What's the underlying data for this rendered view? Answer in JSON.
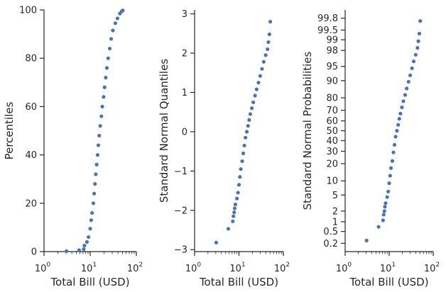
{
  "chart_data": [
    {
      "type": "scatter",
      "xscale": "log",
      "xlabel": "Total Bill (USD)",
      "ylabel": "Percentiles",
      "xlim": [
        1,
        100
      ],
      "ylim": [
        0,
        100
      ],
      "xticks": [
        1,
        10,
        100
      ],
      "xtick_labels": [
        {
          "base": "10",
          "exp": "0"
        },
        {
          "base": "10",
          "exp": "1"
        },
        {
          "base": "10",
          "exp": "2"
        }
      ],
      "yticks": [
        0,
        20,
        40,
        60,
        80,
        100
      ],
      "ytick_labels": [
        "0",
        "20",
        "40",
        "60",
        "80",
        "100"
      ],
      "grid": false,
      "marker_color": "#4c72b0",
      "points": [
        {
          "x": 3.07,
          "y": 0.2
        },
        {
          "x": 5.75,
          "y": 0.6
        },
        {
          "x": 7.25,
          "y": 1.0
        },
        {
          "x": 7.5,
          "y": 2.5
        },
        {
          "x": 8.5,
          "y": 4.0
        },
        {
          "x": 9.2,
          "y": 6.0
        },
        {
          "x": 10.0,
          "y": 9.5
        },
        {
          "x": 10.5,
          "y": 13.0
        },
        {
          "x": 11.0,
          "y": 16.0
        },
        {
          "x": 11.7,
          "y": 20.0
        },
        {
          "x": 12.2,
          "y": 24.0
        },
        {
          "x": 12.7,
          "y": 28.0
        },
        {
          "x": 13.2,
          "y": 32.0
        },
        {
          "x": 13.8,
          "y": 36.0
        },
        {
          "x": 14.5,
          "y": 40.0
        },
        {
          "x": 15.0,
          "y": 44.0
        },
        {
          "x": 15.7,
          "y": 48.0
        },
        {
          "x": 16.5,
          "y": 52.0
        },
        {
          "x": 17.5,
          "y": 56.0
        },
        {
          "x": 18.3,
          "y": 60.0
        },
        {
          "x": 19.5,
          "y": 64.0
        },
        {
          "x": 20.5,
          "y": 68.0
        },
        {
          "x": 21.7,
          "y": 72.0
        },
        {
          "x": 23.0,
          "y": 76.0
        },
        {
          "x": 24.5,
          "y": 80.0
        },
        {
          "x": 26.5,
          "y": 84.0
        },
        {
          "x": 28.5,
          "y": 88.0
        },
        {
          "x": 31.0,
          "y": 91.5
        },
        {
          "x": 35.0,
          "y": 94.5
        },
        {
          "x": 39.0,
          "y": 96.5
        },
        {
          "x": 44.0,
          "y": 98.5
        },
        {
          "x": 48.0,
          "y": 99.4
        },
        {
          "x": 50.8,
          "y": 99.8
        }
      ]
    },
    {
      "type": "scatter",
      "xscale": "log",
      "xlabel": "Total Bill (USD)",
      "ylabel": "Standard Normal Quantiles",
      "xlim": [
        1,
        100
      ],
      "ylim": [
        -3.05,
        3.1
      ],
      "xticks": [
        1,
        10,
        100
      ],
      "xtick_labels": [
        {
          "base": "10",
          "exp": "0"
        },
        {
          "base": "10",
          "exp": "1"
        },
        {
          "base": "10",
          "exp": "2"
        }
      ],
      "yticks": [
        -3,
        -2,
        -1,
        0,
        1,
        2,
        3
      ],
      "ytick_labels": [
        "−3",
        "−2",
        "−1",
        "0",
        "1",
        "2",
        "3"
      ],
      "grid": false,
      "marker_color": "#4c72b0",
      "points": [
        {
          "x": 3.07,
          "y": -2.82
        },
        {
          "x": 5.75,
          "y": -2.47
        },
        {
          "x": 7.25,
          "y": -2.28
        },
        {
          "x": 7.5,
          "y": -2.15
        },
        {
          "x": 7.8,
          "y": -2.05
        },
        {
          "x": 8.0,
          "y": -1.95
        },
        {
          "x": 8.3,
          "y": -1.85
        },
        {
          "x": 9.0,
          "y": -1.7
        },
        {
          "x": 9.5,
          "y": -1.55
        },
        {
          "x": 10.0,
          "y": -1.35
        },
        {
          "x": 10.5,
          "y": -1.15
        },
        {
          "x": 11.0,
          "y": -0.95
        },
        {
          "x": 11.8,
          "y": -0.75
        },
        {
          "x": 12.5,
          "y": -0.55
        },
        {
          "x": 13.2,
          "y": -0.35
        },
        {
          "x": 14.0,
          "y": -0.15
        },
        {
          "x": 15.0,
          "y": 0.0
        },
        {
          "x": 16.0,
          "y": 0.15
        },
        {
          "x": 17.0,
          "y": 0.3
        },
        {
          "x": 18.0,
          "y": 0.45
        },
        {
          "x": 19.5,
          "y": 0.6
        },
        {
          "x": 21.0,
          "y": 0.75
        },
        {
          "x": 23.0,
          "y": 0.92
        },
        {
          "x": 25.0,
          "y": 1.08
        },
        {
          "x": 27.5,
          "y": 1.25
        },
        {
          "x": 30.0,
          "y": 1.42
        },
        {
          "x": 33.0,
          "y": 1.6
        },
        {
          "x": 36.0,
          "y": 1.78
        },
        {
          "x": 40.0,
          "y": 1.95
        },
        {
          "x": 44.0,
          "y": 2.1
        },
        {
          "x": 46.0,
          "y": 2.28
        },
        {
          "x": 48.5,
          "y": 2.48
        },
        {
          "x": 50.8,
          "y": 2.8
        }
      ]
    },
    {
      "type": "scatter",
      "xscale": "log",
      "yscale": "probability",
      "xlabel": "Total Bill (USD)",
      "ylabel": "Standard Normal Probabilities",
      "xlim": [
        1,
        100
      ],
      "ylim": [
        0.1,
        99.9
      ],
      "xticks": [
        1,
        10,
        100
      ],
      "xtick_labels": [
        {
          "base": "10",
          "exp": "0"
        },
        {
          "base": "10",
          "exp": "1"
        },
        {
          "base": "10",
          "exp": "2"
        }
      ],
      "yticks": [
        0.2,
        0.5,
        1,
        2,
        5,
        10,
        20,
        30,
        40,
        50,
        60,
        70,
        80,
        90,
        95,
        98,
        99,
        99.5,
        99.8
      ],
      "ytick_labels": [
        "0.2",
        "0.5",
        "1",
        "2",
        "5",
        "10",
        "20",
        "30",
        "40",
        "50",
        "60",
        "70",
        "80",
        "90",
        "95",
        "98",
        "99",
        "99.5",
        "99.8"
      ],
      "grid": false,
      "marker_color": "#4c72b0",
      "points": [
        {
          "x": 3.07,
          "y": 0.25
        },
        {
          "x": 5.75,
          "y": 0.7
        },
        {
          "x": 7.25,
          "y": 1.1
        },
        {
          "x": 7.5,
          "y": 1.6
        },
        {
          "x": 7.8,
          "y": 2.0
        },
        {
          "x": 8.0,
          "y": 2.6
        },
        {
          "x": 8.3,
          "y": 3.2
        },
        {
          "x": 9.0,
          "y": 4.5
        },
        {
          "x": 9.5,
          "y": 6.0
        },
        {
          "x": 10.0,
          "y": 9.0
        },
        {
          "x": 10.5,
          "y": 12.5
        },
        {
          "x": 11.0,
          "y": 17.0
        },
        {
          "x": 11.8,
          "y": 22.0
        },
        {
          "x": 12.5,
          "y": 29.0
        },
        {
          "x": 13.2,
          "y": 36.0
        },
        {
          "x": 14.0,
          "y": 44.0
        },
        {
          "x": 15.0,
          "y": 50.0
        },
        {
          "x": 16.0,
          "y": 56.0
        },
        {
          "x": 17.0,
          "y": 62.0
        },
        {
          "x": 18.0,
          "y": 67.0
        },
        {
          "x": 19.5,
          "y": 72.5
        },
        {
          "x": 21.0,
          "y": 77.5
        },
        {
          "x": 23.0,
          "y": 82.0
        },
        {
          "x": 25.0,
          "y": 86.0
        },
        {
          "x": 27.5,
          "y": 89.5
        },
        {
          "x": 30.0,
          "y": 92.2
        },
        {
          "x": 33.0,
          "y": 94.5
        },
        {
          "x": 36.0,
          "y": 96.2
        },
        {
          "x": 40.0,
          "y": 97.4
        },
        {
          "x": 44.0,
          "y": 98.3
        },
        {
          "x": 46.0,
          "y": 98.9
        },
        {
          "x": 48.5,
          "y": 99.35
        },
        {
          "x": 50.8,
          "y": 99.75
        }
      ]
    }
  ]
}
